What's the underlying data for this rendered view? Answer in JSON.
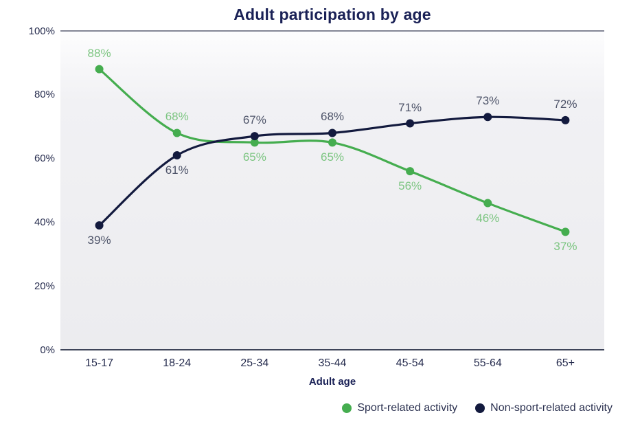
{
  "title": "Adult participation by age",
  "colors": {
    "title_text": "#1a2156",
    "axis_text": "#262c4e",
    "top_gridline": "#5a5f73",
    "bottom_axis_line": "#3e4459"
  },
  "chart_data": {
    "type": "line",
    "title": "Adult participation by age",
    "xlabel": "Adult age",
    "ylabel": "",
    "categories": [
      "15-17",
      "18-24",
      "25-34",
      "35-44",
      "45-54",
      "55-64",
      "65+"
    ],
    "series": [
      {
        "name": "Sport-related activity",
        "values": [
          88,
          68,
          65,
          65,
          56,
          46,
          37
        ],
        "data_labels": [
          "88%",
          "68%",
          "65%",
          "65%",
          "56%",
          "46%",
          "37%"
        ],
        "label_positions": [
          "above",
          "above",
          "below",
          "below",
          "below",
          "below",
          "below"
        ],
        "color": "#45ad4f",
        "label_color": "#7cc581"
      },
      {
        "name": "Non-sport-related activity",
        "values": [
          39,
          61,
          67,
          68,
          71,
          73,
          72
        ],
        "data_labels": [
          "39%",
          "61%",
          "67%",
          "68%",
          "71%",
          "73%",
          "72%"
        ],
        "label_positions": [
          "below",
          "below",
          "above",
          "above",
          "above",
          "above",
          "above"
        ],
        "color": "#131a3e",
        "label_color": "#4e5469"
      }
    ],
    "y_ticks": [
      {
        "value": 0,
        "label": "0%"
      },
      {
        "value": 20,
        "label": "20%"
      },
      {
        "value": 40,
        "label": "40%"
      },
      {
        "value": 60,
        "label": "60%"
      },
      {
        "value": 80,
        "label": "80%"
      },
      {
        "value": 100,
        "label": "100%"
      }
    ],
    "ylim": [
      0,
      100
    ],
    "grid": false,
    "smooth": true,
    "legend_position": "bottom-right"
  }
}
